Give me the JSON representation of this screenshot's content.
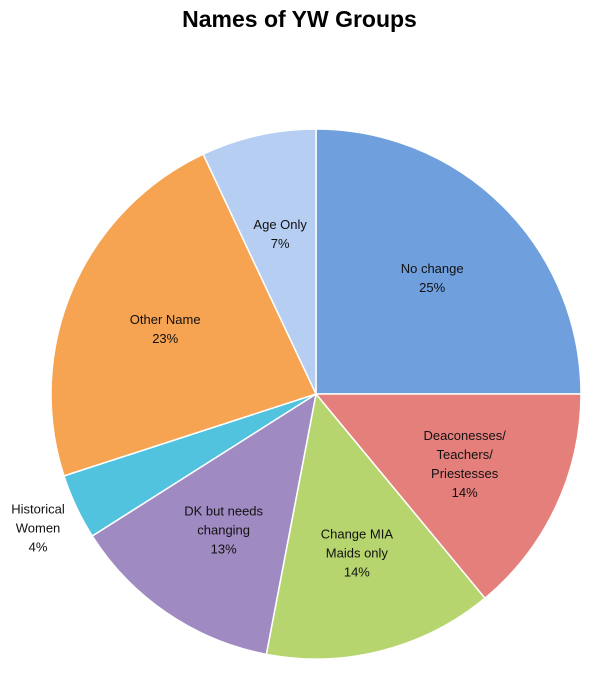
{
  "chart_data": {
    "type": "pie",
    "title": "Names of YW Groups",
    "categories": [
      "No change",
      "Deaconesses/\nTeachers/\nPriestesses",
      "Change MIA\nMaids only",
      "DK but needs\nchanging",
      "Historical\nWomen",
      "Other Name",
      "Age Only"
    ],
    "values": [
      25,
      14,
      14,
      13,
      4,
      23,
      7
    ],
    "value_labels": [
      "25%",
      "14%",
      "14%",
      "13%",
      "4%",
      "23%",
      "7%"
    ],
    "colors": [
      "#6f9fdc",
      "#e57f7c",
      "#b7d56f",
      "#a08ac2",
      "#52c3df",
      "#f6a352",
      "#b5cef2"
    ]
  }
}
